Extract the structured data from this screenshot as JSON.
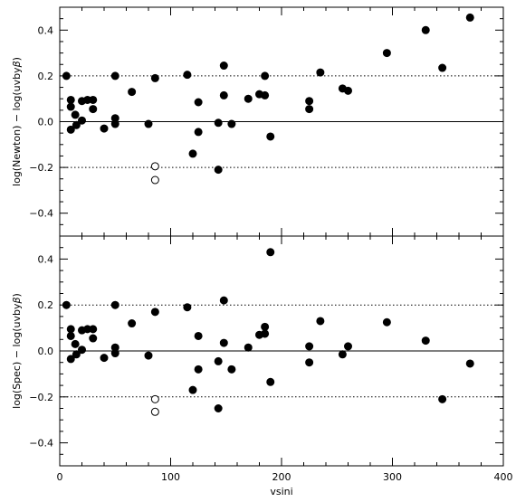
{
  "chart_data": [
    {
      "type": "scatter",
      "title": "",
      "xlabel": "",
      "ylabel_parts": [
        "log(Newton)  −  log(uvby",
        "β",
        ")"
      ],
      "xlim": [
        0,
        400
      ],
      "ylim": [
        -0.5,
        0.5
      ],
      "x_ticks": [
        0,
        100,
        200,
        300,
        400
      ],
      "x_tick_labels": [],
      "y_ticks": [
        -0.4,
        -0.2,
        0.0,
        0.2,
        0.4
      ],
      "y_tick_labels": [
        "−0.4",
        "−0.2",
        "0.0",
        "0.2",
        "0.4"
      ],
      "reference_lines": [
        {
          "y": 0.0,
          "style": "solid"
        },
        {
          "y": 0.2,
          "style": "dotted"
        },
        {
          "y": -0.2,
          "style": "dotted"
        }
      ],
      "series": [
        {
          "marker": "filled-circle",
          "points": [
            [
              6,
              0.2
            ],
            [
              10,
              0.095
            ],
            [
              10,
              0.065
            ],
            [
              10,
              -0.035
            ],
            [
              14,
              0.03
            ],
            [
              15,
              -0.015
            ],
            [
              20,
              0.09
            ],
            [
              20,
              0.005
            ],
            [
              25,
              0.095
            ],
            [
              30,
              0.095
            ],
            [
              30,
              0.055
            ],
            [
              40,
              -0.03
            ],
            [
              50,
              0.2
            ],
            [
              50,
              0.015
            ],
            [
              50,
              -0.01
            ],
            [
              65,
              0.13
            ],
            [
              80,
              -0.01
            ],
            [
              86,
              0.19
            ],
            [
              115,
              0.205
            ],
            [
              120,
              -0.14
            ],
            [
              125,
              0.085
            ],
            [
              125,
              -0.045
            ],
            [
              143,
              -0.005
            ],
            [
              143,
              -0.21
            ],
            [
              148,
              0.245
            ],
            [
              148,
              0.115
            ],
            [
              155,
              -0.01
            ],
            [
              170,
              0.1
            ],
            [
              180,
              0.12
            ],
            [
              185,
              0.2
            ],
            [
              185,
              0.115
            ],
            [
              190,
              -0.065
            ],
            [
              225,
              0.09
            ],
            [
              225,
              0.055
            ],
            [
              235,
              0.215
            ],
            [
              255,
              0.145
            ],
            [
              260,
              0.135
            ],
            [
              295,
              0.3
            ],
            [
              330,
              0.4
            ],
            [
              345,
              0.235
            ],
            [
              370,
              0.455
            ]
          ]
        },
        {
          "marker": "open-circle",
          "points": [
            [
              86,
              -0.195
            ],
            [
              86,
              -0.255
            ]
          ]
        }
      ]
    },
    {
      "type": "scatter",
      "title": "",
      "xlabel": "vsini",
      "ylabel_parts": [
        "log(Spec)  −  log(uvby",
        "β",
        ")"
      ],
      "xlim": [
        0,
        400
      ],
      "ylim": [
        -0.5,
        0.5
      ],
      "x_ticks": [
        0,
        100,
        200,
        300,
        400
      ],
      "x_tick_labels": [
        "0",
        "100",
        "200",
        "300",
        "400"
      ],
      "y_ticks": [
        -0.4,
        -0.2,
        0.0,
        0.2,
        0.4
      ],
      "y_tick_labels": [
        "−0.4",
        "−0.2",
        "0.0",
        "0.2",
        "0.4"
      ],
      "reference_lines": [
        {
          "y": 0.0,
          "style": "solid"
        },
        {
          "y": 0.2,
          "style": "dotted"
        },
        {
          "y": -0.2,
          "style": "dotted"
        }
      ],
      "series": [
        {
          "marker": "filled-circle",
          "points": [
            [
              6,
              0.2
            ],
            [
              10,
              0.095
            ],
            [
              10,
              0.065
            ],
            [
              10,
              -0.035
            ],
            [
              14,
              0.03
            ],
            [
              15,
              -0.015
            ],
            [
              20,
              0.09
            ],
            [
              20,
              0.005
            ],
            [
              25,
              0.095
            ],
            [
              30,
              0.095
            ],
            [
              30,
              0.055
            ],
            [
              40,
              -0.03
            ],
            [
              50,
              0.2
            ],
            [
              50,
              0.015
            ],
            [
              50,
              -0.01
            ],
            [
              65,
              0.12
            ],
            [
              80,
              -0.02
            ],
            [
              86,
              0.17
            ],
            [
              115,
              0.19
            ],
            [
              120,
              -0.17
            ],
            [
              125,
              0.065
            ],
            [
              125,
              -0.08
            ],
            [
              143,
              -0.045
            ],
            [
              143,
              -0.25
            ],
            [
              148,
              0.22
            ],
            [
              148,
              0.035
            ],
            [
              155,
              -0.08
            ],
            [
              170,
              0.015
            ],
            [
              180,
              0.07
            ],
            [
              185,
              0.105
            ],
            [
              185,
              0.075
            ],
            [
              190,
              0.43
            ],
            [
              190,
              -0.135
            ],
            [
              225,
              0.02
            ],
            [
              225,
              -0.05
            ],
            [
              235,
              0.13
            ],
            [
              255,
              -0.015
            ],
            [
              260,
              0.02
            ],
            [
              295,
              0.125
            ],
            [
              330,
              0.045
            ],
            [
              345,
              -0.21
            ],
            [
              370,
              -0.055
            ]
          ]
        },
        {
          "marker": "open-circle",
          "points": [
            [
              86,
              -0.21
            ],
            [
              86,
              -0.265
            ]
          ]
        }
      ]
    }
  ]
}
